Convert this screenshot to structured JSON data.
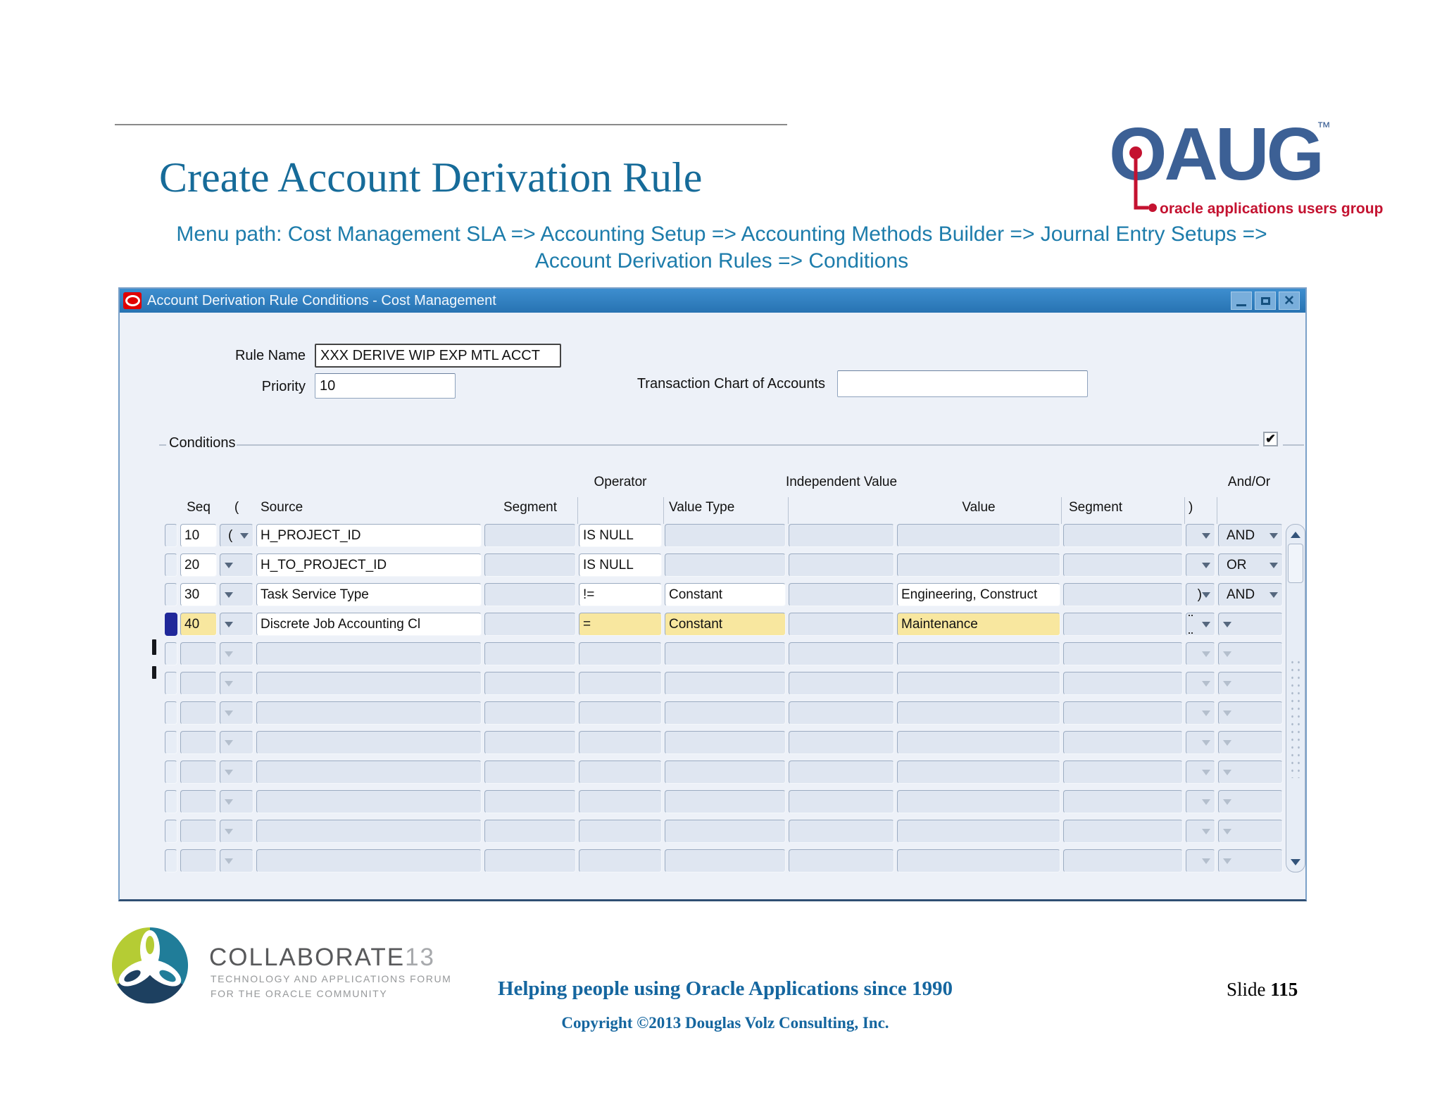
{
  "slide": {
    "title": "Create Account Derivation Rule",
    "menu_path_line1": "Menu path: Cost Management SLA => Accounting Setup => Accounting Methods Builder => Journal Entry Setups =>",
    "menu_path_line2": "Account Derivation Rules => Conditions"
  },
  "oaug_logo": {
    "acronym": "OAUG",
    "trademark": "™",
    "tagline": "oracle applications users group"
  },
  "window": {
    "title": "Account Derivation Rule Conditions - Cost Management",
    "icons": [
      "oracle-logo-icon",
      "minimize-icon",
      "maximize-icon",
      "close-icon"
    ],
    "fields": {
      "rule_name_label": "Rule Name",
      "rule_name_value": "XXX DERIVE WIP EXP MTL ACCT",
      "priority_label": "Priority",
      "priority_value": "10",
      "tcoa_label": "Transaction Chart of Accounts",
      "tcoa_value": ""
    },
    "conditions": {
      "frame_label": "Conditions",
      "checkbox_checked": "✔",
      "group_headers": {
        "operator": "Operator",
        "independent_value": "Independent Value",
        "and_or": "And/Or"
      },
      "col_headers": {
        "seq": "Seq",
        "open": "(",
        "source": "Source",
        "segment1": "Segment",
        "value_type": "Value Type",
        "value": "Value",
        "segment2": "Segment",
        "close": ")"
      },
      "rows": [
        {
          "seq": "10",
          "open": "(",
          "source": "H_PROJECT_ID",
          "segment1": "",
          "operator": "IS NULL",
          "value_type": "",
          "mid": "",
          "value": "",
          "segment2": "",
          "close": "",
          "and_or": "AND",
          "white": [
            "seq",
            "source",
            "operator"
          ],
          "yellow": [],
          "dark": true,
          "active": false,
          "focus": false
        },
        {
          "seq": "20",
          "open": "",
          "source": "H_TO_PROJECT_ID",
          "segment1": "",
          "operator": "IS NULL",
          "value_type": "",
          "mid": "",
          "value": "",
          "segment2": "",
          "close": "",
          "and_or": "OR",
          "white": [
            "seq",
            "source",
            "operator"
          ],
          "yellow": [],
          "dark": true,
          "active": false,
          "focus": false
        },
        {
          "seq": "30",
          "open": "",
          "source": "Task Service Type",
          "segment1": "",
          "operator": "!=",
          "value_type": "Constant",
          "mid": "",
          "value": "Engineering, Construct",
          "segment2": "",
          "close": ")",
          "and_or": "AND",
          "white": [
            "seq",
            "source",
            "operator",
            "value_type",
            "value"
          ],
          "yellow": [],
          "dark": true,
          "active": false,
          "focus": false
        },
        {
          "seq": "40",
          "open": "",
          "source": "Discrete Job Accounting Cl",
          "segment1": "",
          "operator": "=",
          "value_type": "Constant",
          "mid": "",
          "value": "Maintenance",
          "segment2": "",
          "close": "",
          "and_or": "",
          "white": [
            "source"
          ],
          "yellow": [
            "seq",
            "operator",
            "value_type",
            "value"
          ],
          "dark": true,
          "active": true,
          "focus": true
        },
        {
          "seq": "",
          "open": "",
          "source": "",
          "segment1": "",
          "operator": "",
          "value_type": "",
          "mid": "",
          "value": "",
          "segment2": "",
          "close": "",
          "and_or": "",
          "white": [],
          "yellow": [],
          "dark": false,
          "active": false,
          "focus": false
        },
        {
          "seq": "",
          "open": "",
          "source": "",
          "segment1": "",
          "operator": "",
          "value_type": "",
          "mid": "",
          "value": "",
          "segment2": "",
          "close": "",
          "and_or": "",
          "white": [],
          "yellow": [],
          "dark": false,
          "active": false,
          "focus": false
        },
        {
          "seq": "",
          "open": "",
          "source": "",
          "segment1": "",
          "operator": "",
          "value_type": "",
          "mid": "",
          "value": "",
          "segment2": "",
          "close": "",
          "and_or": "",
          "white": [],
          "yellow": [],
          "dark": false,
          "active": false,
          "focus": false
        },
        {
          "seq": "",
          "open": "",
          "source": "",
          "segment1": "",
          "operator": "",
          "value_type": "",
          "mid": "",
          "value": "",
          "segment2": "",
          "close": "",
          "and_or": "",
          "white": [],
          "yellow": [],
          "dark": false,
          "active": false,
          "focus": false
        },
        {
          "seq": "",
          "open": "",
          "source": "",
          "segment1": "",
          "operator": "",
          "value_type": "",
          "mid": "",
          "value": "",
          "segment2": "",
          "close": "",
          "and_or": "",
          "white": [],
          "yellow": [],
          "dark": false,
          "active": false,
          "focus": false
        },
        {
          "seq": "",
          "open": "",
          "source": "",
          "segment1": "",
          "operator": "",
          "value_type": "",
          "mid": "",
          "value": "",
          "segment2": "",
          "close": "",
          "and_or": "",
          "white": [],
          "yellow": [],
          "dark": false,
          "active": false,
          "focus": false
        },
        {
          "seq": "",
          "open": "",
          "source": "",
          "segment1": "",
          "operator": "",
          "value_type": "",
          "mid": "",
          "value": "",
          "segment2": "",
          "close": "",
          "and_or": "",
          "white": [],
          "yellow": [],
          "dark": false,
          "active": false,
          "focus": false
        },
        {
          "seq": "",
          "open": "",
          "source": "",
          "segment1": "",
          "operator": "",
          "value_type": "",
          "mid": "",
          "value": "",
          "segment2": "",
          "close": "",
          "and_or": "",
          "white": [],
          "yellow": [],
          "dark": false,
          "active": false,
          "focus": false
        }
      ]
    }
  },
  "footer": {
    "collaborate_brand": "COLLABORATE",
    "collaborate_year": "13",
    "collaborate_tagline1": "TECHNOLOGY AND APPLICATIONS FORUM",
    "collaborate_tagline2": "FOR THE ORACLE COMMUNITY",
    "helping_text": "Helping people using Oracle Applications since 1990",
    "slide_label": "Slide ",
    "slide_number": "115",
    "copyright": "Copyright ©2013 Douglas Volz Consulting, Inc."
  },
  "colors": {
    "title_blue": "#166b99",
    "menu_teal": "#1d7cab",
    "titlebar_blue": "#2e7fc0",
    "cell_default": "#dfe6f1",
    "cell_yellow": "#f8e79f",
    "record_indicator_blue": "#20289a",
    "oaug_blue": "#3c6095",
    "oaug_red": "#c41230",
    "collaborate_lime": "#b5cc34",
    "collaborate_teal": "#207d99",
    "collaborate_navy": "#1d4060",
    "footer_blue": "#15669f"
  }
}
